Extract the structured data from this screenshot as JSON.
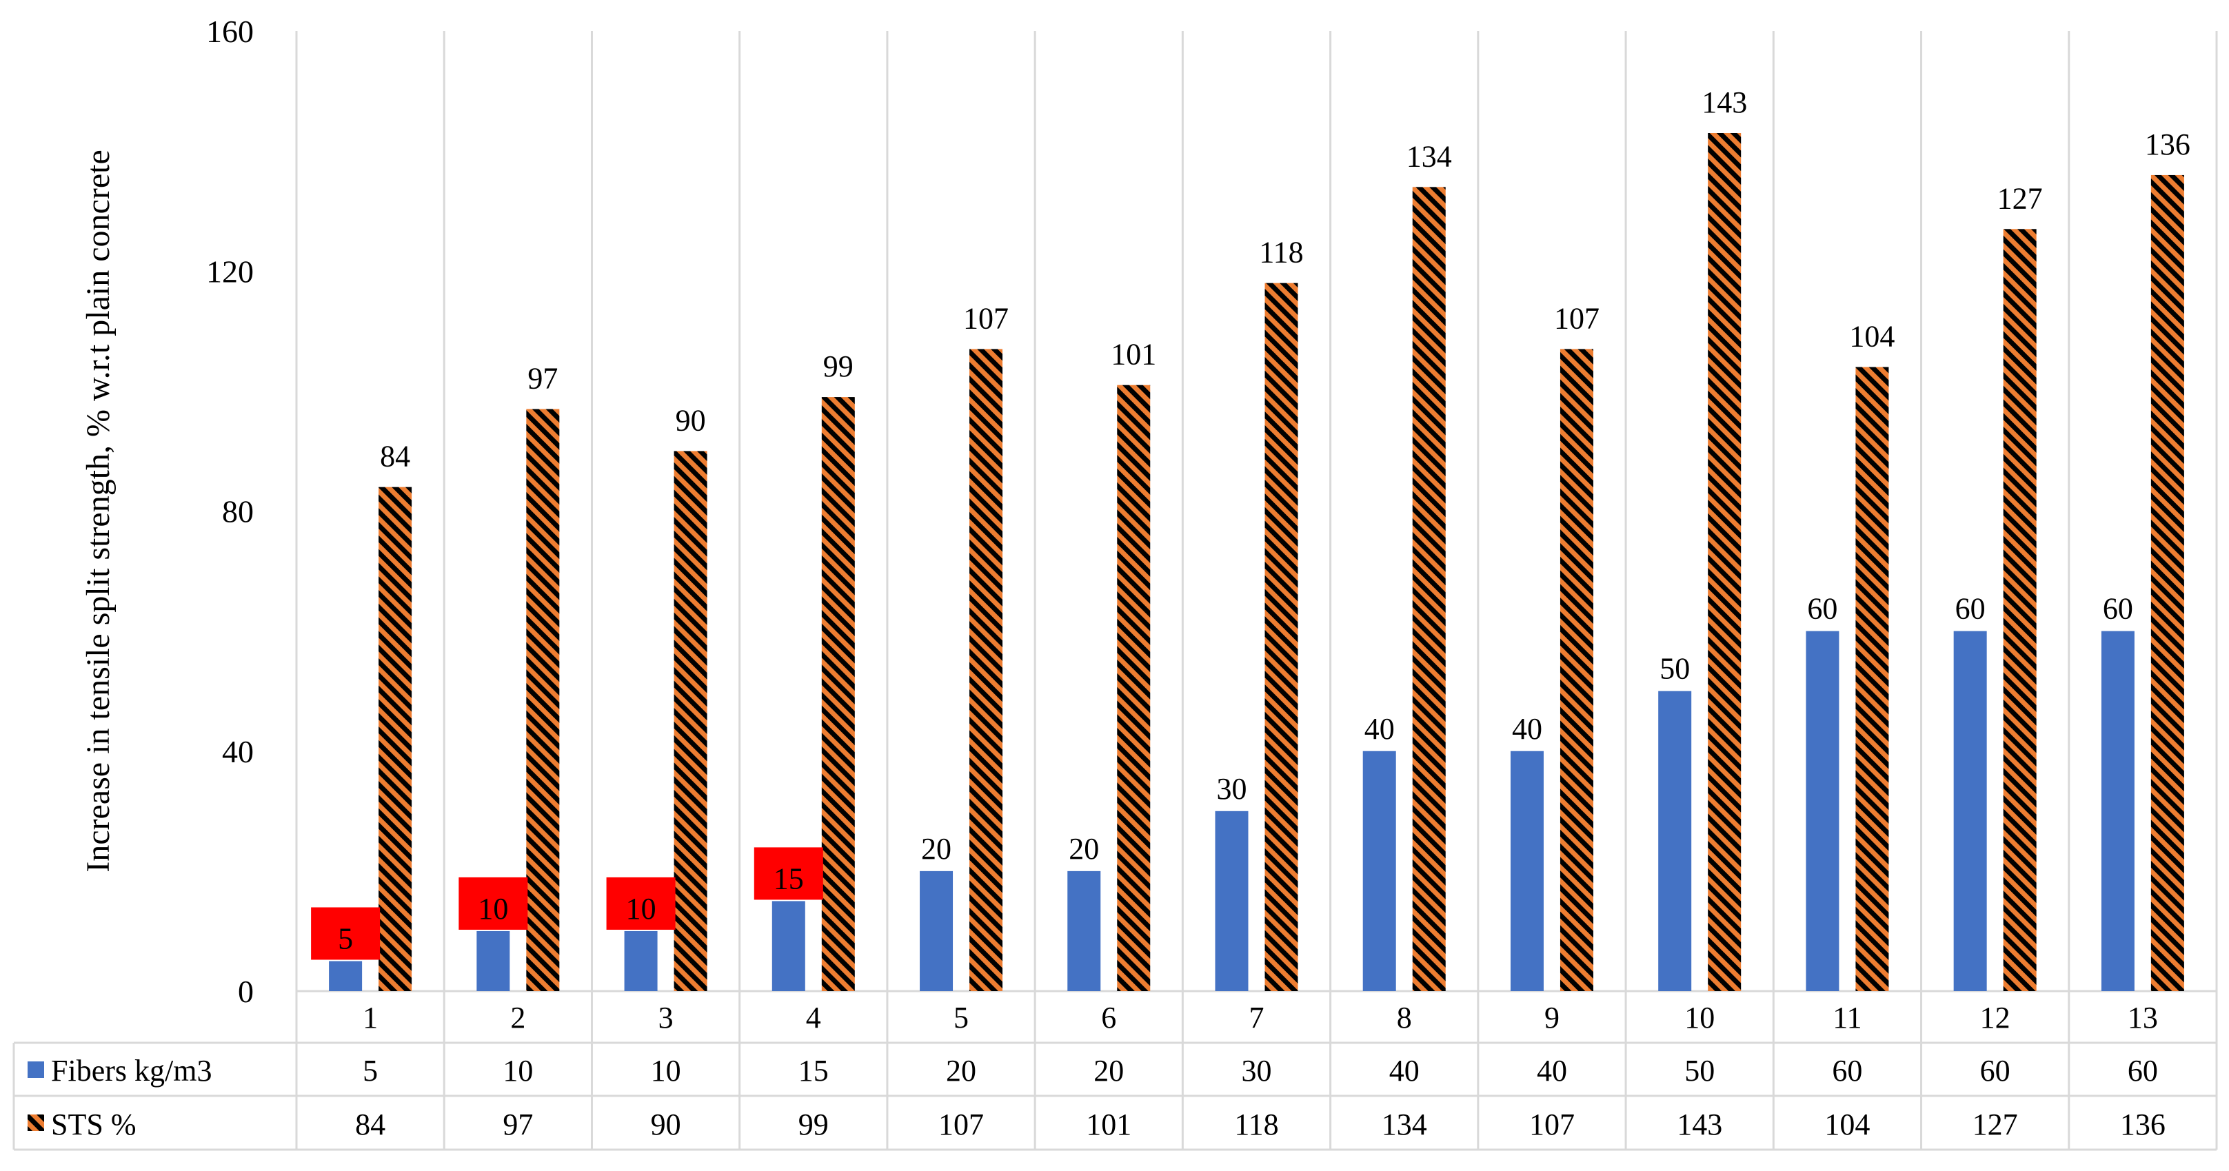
{
  "chart_data": {
    "type": "bar",
    "title": "",
    "xlabel": "",
    "ylabel": "Increase in tensile split strength, % w.r.t plain concrete",
    "ylim": [
      0,
      160
    ],
    "yticks": [
      0,
      40,
      80,
      120,
      160
    ],
    "grid": "vertical separators",
    "categories": [
      "1",
      "2",
      "3",
      "4",
      "5",
      "6",
      "7",
      "8",
      "9",
      "10",
      "11",
      "12",
      "13"
    ],
    "series": [
      {
        "name": "Fibers kg/m3",
        "color": "#4472C4",
        "pattern": "solid",
        "values": [
          5,
          10,
          10,
          15,
          20,
          20,
          30,
          40,
          40,
          50,
          60,
          60,
          60
        ],
        "highlighted_labels": [
          0,
          1,
          2,
          3
        ],
        "highlight_color": "#FF0000"
      },
      {
        "name": "STS %",
        "color": "#ED7D31",
        "pattern": "diagonal-stripes-black",
        "values": [
          84,
          97,
          90,
          99,
          107,
          101,
          118,
          134,
          107,
          143,
          104,
          127,
          136
        ]
      }
    ],
    "data_table": true
  }
}
